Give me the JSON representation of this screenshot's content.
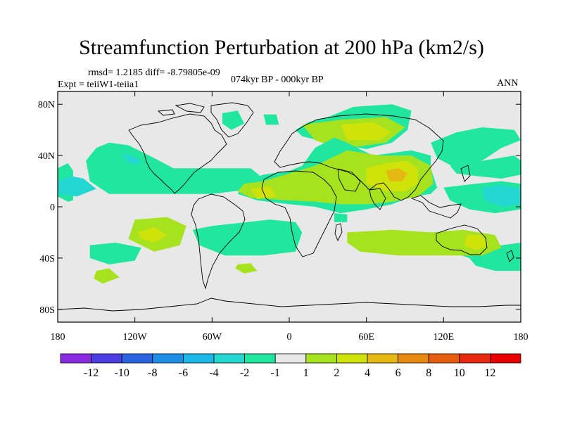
{
  "title": "Streamfunction Perturbation at 200 hPa (km2/s)",
  "stats_line": "rmsd= 1.2185 diff= -8.79805e-09",
  "period": "074kyr BP - 000kyr BP",
  "experiment": "Expt = teiiW1-teiia1",
  "season": "ANN",
  "map": {
    "projection": "cylindrical-equidistant",
    "lon_range": [
      -180,
      180
    ],
    "lat_range": [
      -90,
      90
    ],
    "x_ticks": [
      {
        "value": -180,
        "label": "180"
      },
      {
        "value": -120,
        "label": "120W"
      },
      {
        "value": -60,
        "label": "60W"
      },
      {
        "value": 0,
        "label": "0"
      },
      {
        "value": 60,
        "label": "60E"
      },
      {
        "value": 120,
        "label": "120E"
      },
      {
        "value": 180,
        "label": "180"
      }
    ],
    "y_ticks": [
      {
        "value": 80,
        "label": "80N"
      },
      {
        "value": 40,
        "label": "40N"
      },
      {
        "value": 0,
        "label": "0"
      },
      {
        "value": -40,
        "label": "40S"
      },
      {
        "value": -80,
        "label": "80S"
      }
    ],
    "background_color": "#e8e8e8"
  },
  "colorbar": {
    "levels": [
      "-12",
      "-10",
      "-8",
      "-6",
      "-4",
      "-2",
      "-1",
      "1",
      "2",
      "4",
      "6",
      "8",
      "10",
      "12"
    ],
    "colors": [
      "#8a2be2",
      "#4b3ee0",
      "#2a64e0",
      "#1e8fe6",
      "#1cb8e8",
      "#22d8d0",
      "#20e6a0",
      "#e8e8e8",
      "#a6e21e",
      "#cfe20a",
      "#e6b812",
      "#e88a10",
      "#e65c10",
      "#e62a10",
      "#e60000"
    ]
  },
  "chart_data": {
    "type": "heatmap",
    "variable": "Streamfunction Perturbation at 200 hPa (km2/s)",
    "level_hPa": 200,
    "units": "km2/s",
    "period": "074kyr BP - 000kyr BP",
    "season": "ANN",
    "rmsd": 1.2185,
    "diff": -8.79805e-09,
    "contour_levels": [
      -12,
      -10,
      -8,
      -6,
      -4,
      -2,
      -1,
      1,
      2,
      4,
      6,
      8,
      10,
      12
    ],
    "regions": [
      {
        "category": "-2..-1",
        "color": "#20e6a0",
        "points": [
          [
            -180,
            30
          ],
          [
            -172,
            34
          ],
          [
            -168,
            28
          ],
          [
            -168,
            5
          ],
          [
            -172,
            4
          ],
          [
            -180,
            8
          ]
        ]
      },
      {
        "category": "-2..-1",
        "color": "#20e6a0",
        "points": [
          [
            -150,
            46
          ],
          [
            -140,
            50
          ],
          [
            -125,
            48
          ],
          [
            -105,
            38
          ],
          [
            -90,
            30
          ],
          [
            -60,
            30
          ],
          [
            -30,
            30
          ],
          [
            -20,
            22
          ],
          [
            -20,
            15
          ],
          [
            -60,
            10
          ],
          [
            -110,
            10
          ],
          [
            -140,
            10
          ],
          [
            -155,
            20
          ],
          [
            -158,
            36
          ]
        ]
      },
      {
        "category": "-4..-2",
        "color": "#22d8d0",
        "points": [
          [
            -130,
            42
          ],
          [
            -118,
            38
          ],
          [
            -115,
            33
          ],
          [
            -125,
            34
          ]
        ]
      },
      {
        "category": "-4..-2",
        "color": "#22d8d0",
        "points": [
          [
            -180,
            20
          ],
          [
            -170,
            24
          ],
          [
            -160,
            22
          ],
          [
            -150,
            14
          ],
          [
            -165,
            8
          ],
          [
            -180,
            10
          ]
        ]
      },
      {
        "category": "-2..-1",
        "color": "#20e6a0",
        "points": [
          [
            -52,
            73
          ],
          [
            -40,
            75
          ],
          [
            -35,
            65
          ],
          [
            -45,
            60
          ],
          [
            -52,
            65
          ]
        ]
      },
      {
        "category": "-2..-1",
        "color": "#20e6a0",
        "points": [
          [
            -20,
            72
          ],
          [
            -10,
            72
          ],
          [
            -8,
            64
          ],
          [
            -18,
            64
          ]
        ]
      },
      {
        "category": "-2..-1",
        "color": "#20e6a0",
        "points": [
          [
            -75,
            -18
          ],
          [
            -60,
            -15
          ],
          [
            -15,
            -10
          ],
          [
            5,
            -12
          ],
          [
            10,
            -20
          ],
          [
            5,
            -35
          ],
          [
            -20,
            -38
          ],
          [
            -50,
            -38
          ],
          [
            -70,
            -30
          ]
        ]
      },
      {
        "category": "1..2",
        "color": "#a6e21e",
        "points": [
          [
            -120,
            -10
          ],
          [
            -95,
            -8
          ],
          [
            -80,
            -15
          ],
          [
            -85,
            -30
          ],
          [
            -105,
            -35
          ],
          [
            -125,
            -25
          ]
        ]
      },
      {
        "category": "2..4",
        "color": "#cfe20a",
        "points": [
          [
            -118,
            -20
          ],
          [
            -105,
            -16
          ],
          [
            -95,
            -22
          ],
          [
            -105,
            -28
          ],
          [
            -115,
            -25
          ]
        ]
      },
      {
        "category": "-2..-1",
        "color": "#20e6a0",
        "points": [
          [
            -155,
            -30
          ],
          [
            -135,
            -28
          ],
          [
            -115,
            -32
          ],
          [
            -120,
            -42
          ],
          [
            -140,
            -45
          ],
          [
            -155,
            -40
          ]
        ]
      },
      {
        "category": "1..2",
        "color": "#a6e21e",
        "points": [
          [
            -150,
            -50
          ],
          [
            -140,
            -48
          ],
          [
            -132,
            -55
          ],
          [
            -145,
            -60
          ],
          [
            -152,
            -56
          ]
        ]
      },
      {
        "category": "1..2",
        "color": "#a6e21e",
        "points": [
          [
            -40,
            -45
          ],
          [
            -30,
            -44
          ],
          [
            -25,
            -50
          ],
          [
            -35,
            -52
          ],
          [
            -42,
            -48
          ]
        ]
      },
      {
        "category": "-2..-1",
        "color": "#20e6a0",
        "points": [
          [
            30,
            70
          ],
          [
            50,
            78
          ],
          [
            80,
            80
          ],
          [
            95,
            75
          ],
          [
            92,
            60
          ],
          [
            80,
            50
          ],
          [
            60,
            45
          ],
          [
            30,
            50
          ],
          [
            10,
            55
          ],
          [
            5,
            60
          ],
          [
            15,
            66
          ]
        ]
      },
      {
        "category": "1..2",
        "color": "#a6e21e",
        "points": [
          [
            10,
            64
          ],
          [
            40,
            68
          ],
          [
            75,
            70
          ],
          [
            90,
            62
          ],
          [
            75,
            50
          ],
          [
            40,
            45
          ],
          [
            20,
            52
          ]
        ]
      },
      {
        "category": "2..4",
        "color": "#cfe20a",
        "points": [
          [
            40,
            64
          ],
          [
            65,
            66
          ],
          [
            80,
            58
          ],
          [
            70,
            52
          ],
          [
            45,
            52
          ]
        ]
      },
      {
        "category": "-2..-1",
        "color": "#20e6a0",
        "points": [
          [
            20,
            46
          ],
          [
            35,
            54
          ],
          [
            45,
            50
          ],
          [
            55,
            45
          ],
          [
            65,
            40
          ],
          [
            80,
            42
          ],
          [
            95,
            44
          ],
          [
            110,
            40
          ],
          [
            110,
            30
          ],
          [
            115,
            15
          ],
          [
            110,
            10
          ],
          [
            95,
            8
          ],
          [
            80,
            2
          ],
          [
            60,
            -2
          ],
          [
            40,
            -5
          ],
          [
            20,
            0
          ],
          [
            0,
            2
          ],
          [
            -25,
            5
          ],
          [
            -40,
            10
          ],
          [
            -35,
            20
          ],
          [
            -20,
            25
          ],
          [
            0,
            28
          ],
          [
            10,
            32
          ]
        ]
      },
      {
        "category": "1..2",
        "color": "#a6e21e",
        "points": [
          [
            -35,
            18
          ],
          [
            -20,
            20
          ],
          [
            0,
            26
          ],
          [
            20,
            32
          ],
          [
            45,
            44
          ],
          [
            70,
            40
          ],
          [
            95,
            40
          ],
          [
            110,
            32
          ],
          [
            112,
            18
          ],
          [
            100,
            8
          ],
          [
            80,
            4
          ],
          [
            60,
            2
          ],
          [
            40,
            2
          ],
          [
            20,
            4
          ],
          [
            0,
            5
          ],
          [
            -30,
            7
          ],
          [
            -40,
            12
          ]
        ]
      },
      {
        "category": "2..4",
        "color": "#cfe20a",
        "points": [
          [
            -30,
            14
          ],
          [
            -15,
            16
          ],
          [
            -10,
            8
          ],
          [
            -25,
            6
          ]
        ]
      },
      {
        "category": "2..4",
        "color": "#cfe20a",
        "points": [
          [
            60,
            30
          ],
          [
            75,
            34
          ],
          [
            90,
            36
          ],
          [
            100,
            30
          ],
          [
            100,
            18
          ],
          [
            90,
            12
          ],
          [
            75,
            12
          ],
          [
            60,
            18
          ]
        ]
      },
      {
        "category": "4..6",
        "color": "#e6b812",
        "points": [
          [
            75,
            28
          ],
          [
            85,
            30
          ],
          [
            92,
            26
          ],
          [
            88,
            20
          ],
          [
            78,
            20
          ]
        ]
      },
      {
        "category": "-2..-1",
        "color": "#20e6a0",
        "points": [
          [
            110,
            50
          ],
          [
            130,
            58
          ],
          [
            150,
            62
          ],
          [
            175,
            60
          ],
          [
            180,
            52
          ],
          [
            165,
            46
          ],
          [
            150,
            36
          ],
          [
            130,
            30
          ],
          [
            115,
            38
          ]
        ]
      },
      {
        "category": "-2..-1",
        "color": "#20e6a0",
        "points": [
          [
            125,
            32
          ],
          [
            145,
            35
          ],
          [
            175,
            40
          ],
          [
            180,
            36
          ],
          [
            180,
            25
          ],
          [
            165,
            22
          ],
          [
            145,
            24
          ],
          [
            130,
            26
          ]
        ]
      },
      {
        "category": "-2..-1",
        "color": "#20e6a0",
        "points": [
          [
            120,
            15
          ],
          [
            145,
            18
          ],
          [
            165,
            20
          ],
          [
            180,
            18
          ],
          [
            180,
            -2
          ],
          [
            160,
            -5
          ],
          [
            140,
            -2
          ],
          [
            125,
            5
          ]
        ]
      },
      {
        "category": "-4..-2",
        "color": "#22d8d0",
        "points": [
          [
            150,
            15
          ],
          [
            165,
            17
          ],
          [
            180,
            14
          ],
          [
            180,
            2
          ],
          [
            165,
            0
          ],
          [
            152,
            5
          ]
        ]
      },
      {
        "category": "-2..-1",
        "color": "#20e6a0",
        "points": [
          [
            120,
            -28
          ],
          [
            145,
            -28
          ],
          [
            165,
            -30
          ],
          [
            180,
            -28
          ],
          [
            180,
            -42
          ],
          [
            160,
            -42
          ],
          [
            140,
            -40
          ],
          [
            125,
            -35
          ]
        ]
      },
      {
        "category": "-2..-1",
        "color": "#20e6a0",
        "points": [
          [
            140,
            -40
          ],
          [
            165,
            -42
          ],
          [
            180,
            -40
          ],
          [
            180,
            -50
          ],
          [
            160,
            -50
          ],
          [
            145,
            -46
          ]
        ]
      },
      {
        "category": "1..2",
        "color": "#a6e21e",
        "points": [
          [
            45,
            -20
          ],
          [
            80,
            -18
          ],
          [
            110,
            -20
          ],
          [
            135,
            -18
          ],
          [
            160,
            -22
          ],
          [
            165,
            -32
          ],
          [
            150,
            -38
          ],
          [
            120,
            -38
          ],
          [
            85,
            -38
          ],
          [
            55,
            -35
          ],
          [
            45,
            -28
          ]
        ]
      },
      {
        "category": "2..4",
        "color": "#cfe20a",
        "points": [
          [
            138,
            -22
          ],
          [
            150,
            -22
          ],
          [
            155,
            -30
          ],
          [
            145,
            -34
          ],
          [
            136,
            -30
          ]
        ]
      },
      {
        "category": "-2..-1",
        "color": "#20e6a0",
        "points": [
          [
            35,
            -5
          ],
          [
            45,
            -6
          ],
          [
            45,
            -12
          ],
          [
            35,
            -12
          ]
        ]
      }
    ]
  }
}
